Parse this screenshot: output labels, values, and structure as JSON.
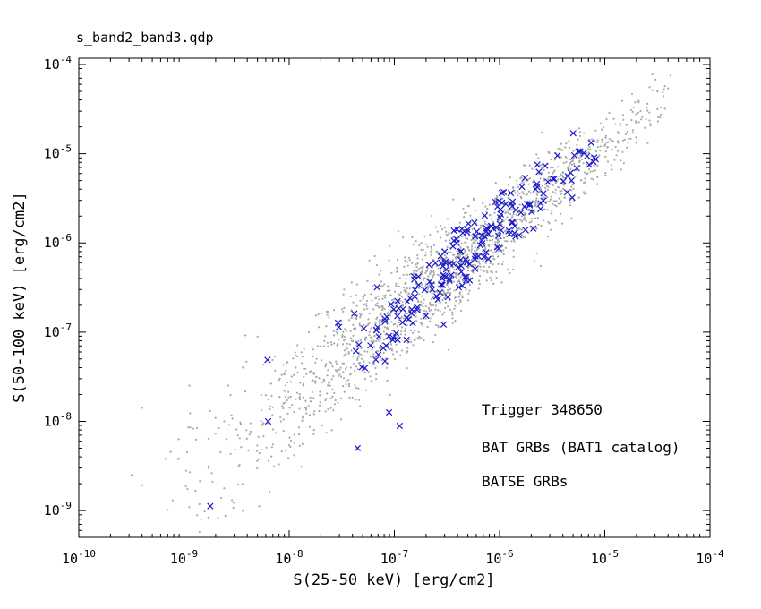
{
  "window": {
    "title": "s_band2_band3.qdp"
  },
  "chart_data": {
    "type": "scatter",
    "title": "s_band2_band3.qdp",
    "xlabel": "S(25-50 keV) [erg/cm2]",
    "ylabel": "S(50-100 keV) [erg/cm2]",
    "x_scale": "log",
    "y_scale": "log",
    "x_log_range": [
      -10,
      -4
    ],
    "y_log_range": [
      -9.3,
      -3.93
    ],
    "x_tick_exponents": [
      -10,
      -9,
      -8,
      -7,
      -6,
      -5,
      -4
    ],
    "y_tick_exponents": [
      -9,
      -8,
      -7,
      -6,
      -5,
      -4
    ],
    "grid": false,
    "legend": {
      "position": "inside-bottom-right",
      "items": [
        {
          "label": "Trigger 348650",
          "color": "#d40000"
        },
        {
          "label": "BAT GRBs (BAT1 catalog)",
          "color": "#1a1acc"
        },
        {
          "label": "BATSE GRBs",
          "color": "#b2b2b2"
        }
      ]
    },
    "series": [
      {
        "name": "BATSE GRBs",
        "marker": "dot",
        "color": "#a9a9a9",
        "count": 1800,
        "seed": 20011,
        "logx_mean": -6.55,
        "logx_sigma": 1.05,
        "logx_min": -9.6,
        "logx_max": -4.35,
        "trend_slope": 0.95,
        "trend_intercept": -0.15,
        "scatter_base": 0.2,
        "scatter_grow": 0.055,
        "scatter_min": 0.18,
        "scatter_max": 0.5,
        "outliers_logxy": [
          [
            -9.4,
            -7.85
          ],
          [
            -8.95,
            -7.6
          ],
          [
            -9.05,
            -8.2
          ],
          [
            -8.3,
            -7.05
          ],
          [
            -9.5,
            -8.6
          ]
        ]
      },
      {
        "name": "BAT GRBs (BAT1 catalog)",
        "marker": "x",
        "color": "#1a1acc",
        "count": 200,
        "seed": 77,
        "logx_mean": -6.3,
        "logx_sigma": 0.65,
        "logx_min": -8.5,
        "logx_max": -5.05,
        "trend_slope": 0.95,
        "trend_intercept": -0.13,
        "scatter_base": 0.13,
        "scatter_grow": 0.06,
        "scatter_min": 0.12,
        "scatter_max": 0.38,
        "outliers_logxy": [
          [
            -5.3,
            -4.77
          ],
          [
            -8.2,
            -8.0
          ],
          [
            -8.75,
            -8.95
          ],
          [
            -7.35,
            -8.3
          ],
          [
            -7.05,
            -7.9
          ],
          [
            -6.95,
            -8.05
          ]
        ]
      }
    ]
  }
}
